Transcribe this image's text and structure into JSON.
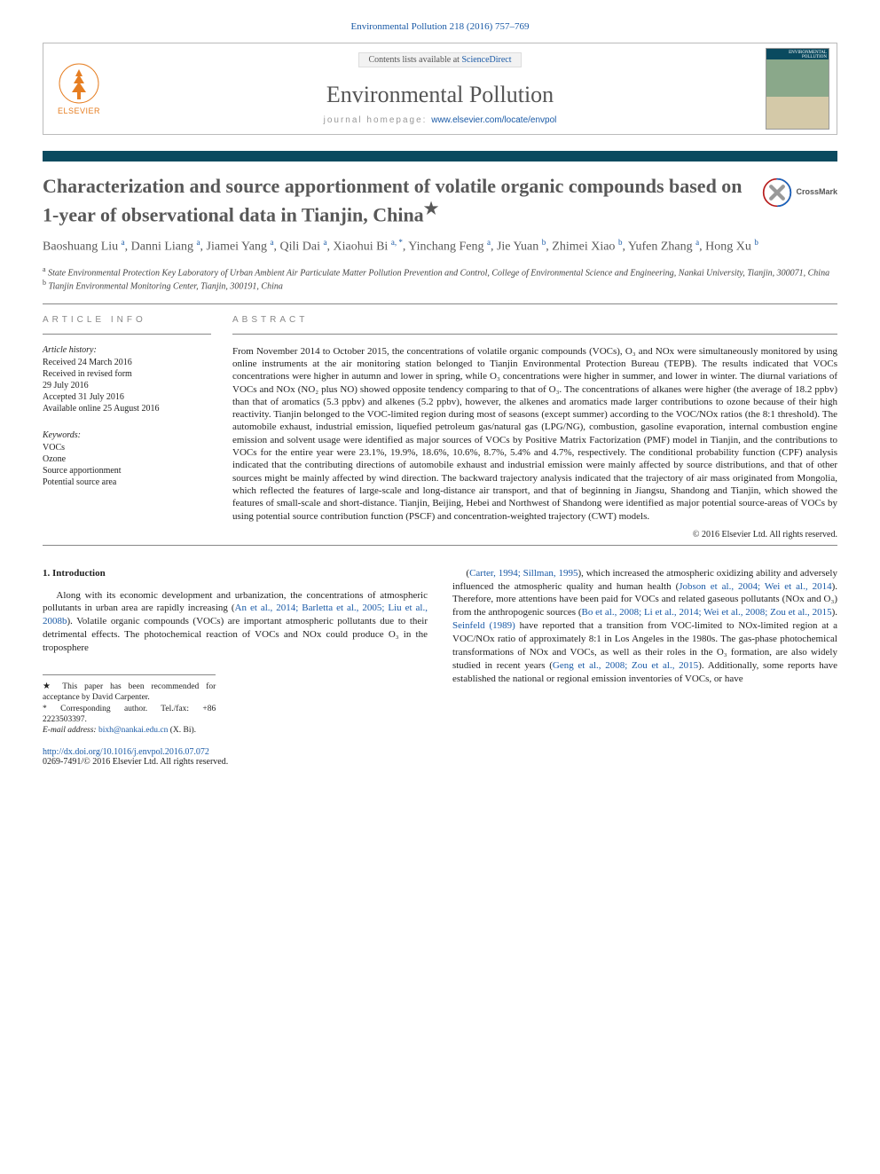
{
  "journal_ref": "Environmental Pollution 218 (2016) 757–769",
  "header": {
    "contents_prefix": "Contents lists available at ",
    "contents_link": "ScienceDirect",
    "journal_title": "Environmental Pollution",
    "homepage_prefix": "journal homepage: ",
    "homepage_url": "www.elsevier.com/locate/envpol",
    "publisher_label": "ELSEVIER",
    "cover_title": "ENVIRONMENTAL POLLUTION"
  },
  "crossmark_label": "CrossMark",
  "title": "Characterization and source apportionment of volatile organic compounds based on 1-year of observational data in Tianjin, China",
  "title_note_marker": "★",
  "authors_html": "Baoshuang Liu <sup>a</sup>, Danni Liang <sup>a</sup>, Jiamei Yang <sup>a</sup>, Qili Dai <sup>a</sup>, Xiaohui Bi <sup>a, *</sup>, Yinchang Feng <sup>a</sup>, Jie Yuan <sup>b</sup>, Zhimei Xiao <sup>b</sup>, Yufen Zhang <sup>a</sup>, Hong Xu <sup>b</sup>",
  "affiliations": {
    "a": "State Environmental Protection Key Laboratory of Urban Ambient Air Particulate Matter Pollution Prevention and Control, College of Environmental Science and Engineering, Nankai University, Tianjin, 300071, China",
    "b": "Tianjin Environmental Monitoring Center, Tianjin, 300191, China"
  },
  "article_info": {
    "heading": "ARTICLE INFO",
    "history_label": "Article history:",
    "history": [
      "Received 24 March 2016",
      "Received in revised form",
      "29 July 2016",
      "Accepted 31 July 2016",
      "Available online 25 August 2016"
    ],
    "keywords_label": "Keywords:",
    "keywords": [
      "VOCs",
      "Ozone",
      "Source apportionment",
      "Potential source area"
    ]
  },
  "abstract": {
    "heading": "ABSTRACT",
    "text": "From November 2014 to October 2015, the concentrations of volatile organic compounds (VOCs), O₃ and NOx were simultaneously monitored by using online instruments at the air monitoring station belonged to Tianjin Environmental Protection Bureau (TEPB). The results indicated that VOCs concentrations were higher in autumn and lower in spring, while O₃ concentrations were higher in summer, and lower in winter. The diurnal variations of VOCs and NOx (NO₂ plus NO) showed opposite tendency comparing to that of O₃. The concentrations of alkanes were higher (the average of 18.2 ppbv) than that of aromatics (5.3 ppbv) and alkenes (5.2 ppbv), however, the alkenes and aromatics made larger contributions to ozone because of their high reactivity. Tianjin belonged to the VOC-limited region during most of seasons (except summer) according to the VOC/NOx ratios (the 8:1 threshold). The automobile exhaust, industrial emission, liquefied petroleum gas/natural gas (LPG/NG), combustion, gasoline evaporation, internal combustion engine emission and solvent usage were identified as major sources of VOCs by Positive Matrix Factorization (PMF) model in Tianjin, and the contributions to VOCs for the entire year were 23.1%, 19.9%, 18.6%, 10.6%, 8.7%, 5.4% and 4.7%, respectively. The conditional probability function (CPF) analysis indicated that the contributing directions of automobile exhaust and industrial emission were mainly affected by source distributions, and that of other sources might be mainly affected by wind direction. The backward trajectory analysis indicated that the trajectory of air mass originated from Mongolia, which reflected the features of large-scale and long-distance air transport, and that of beginning in Jiangsu, Shandong and Tianjin, which showed the features of small-scale and short-distance. Tianjin, Beijing, Hebei and Northwest of Shandong were identified as major potential source-areas of VOCs by using potential source contribution function (PSCF) and concentration-weighted trajectory (CWT) models.",
    "copyright": "© 2016 Elsevier Ltd. All rights reserved."
  },
  "intro": {
    "heading": "1. Introduction",
    "col1": "Along with its economic development and urbanization, the concentrations of atmospheric pollutants in urban area are rapidly increasing (<a>An et al., 2014; Barletta et al., 2005; Liu et al., 2008b</a>). Volatile organic compounds (VOCs) are important atmospheric pollutants due to their detrimental effects. The photochemical reaction of VOCs and NOx could produce O₃ in the troposphere",
    "col2": "(<a>Carter, 1994; Sillman, 1995</a>), which increased the atmospheric oxidizing ability and adversely influenced the atmospheric quality and human health (<a>Jobson et al., 2004; Wei et al., 2014</a>). Therefore, more attentions have been paid for VOCs and related gaseous pollutants (NOx and O₃) from the anthropogenic sources (<a>Bo et al., 2008; Li et al., 2014; Wei et al., 2008; Zou et al., 2015</a>). <a>Seinfeld (1989)</a> have reported that a transition from VOC-limited to NOx-limited region at a VOC/NOx ratio of approximately 8:1 in Los Angeles in the 1980s. The gas-phase photochemical transformations of NOx and VOCs, as well as their roles in the O₃ formation, are also widely studied in recent years (<a>Geng et al., 2008; Zou et al., 2015</a>). Additionally, some reports have established the national or regional emission inventories of VOCs, or have"
  },
  "footnotes": {
    "note_star": "This paper has been recommended for acceptance by David Carpenter.",
    "corr_label": "Corresponding author. Tel./fax: +86 2223503397.",
    "email_label": "E-mail address:",
    "email": "bixh@nankai.edu.cn",
    "email_who": "(X. Bi)."
  },
  "bottom": {
    "doi": "http://dx.doi.org/10.1016/j.envpol.2016.07.072",
    "issn_line": "0269-7491/© 2016 Elsevier Ltd. All rights reserved."
  },
  "colors": {
    "link": "#1a5aa6",
    "bar": "#0a4a5f",
    "heading_gray": "#585858"
  }
}
